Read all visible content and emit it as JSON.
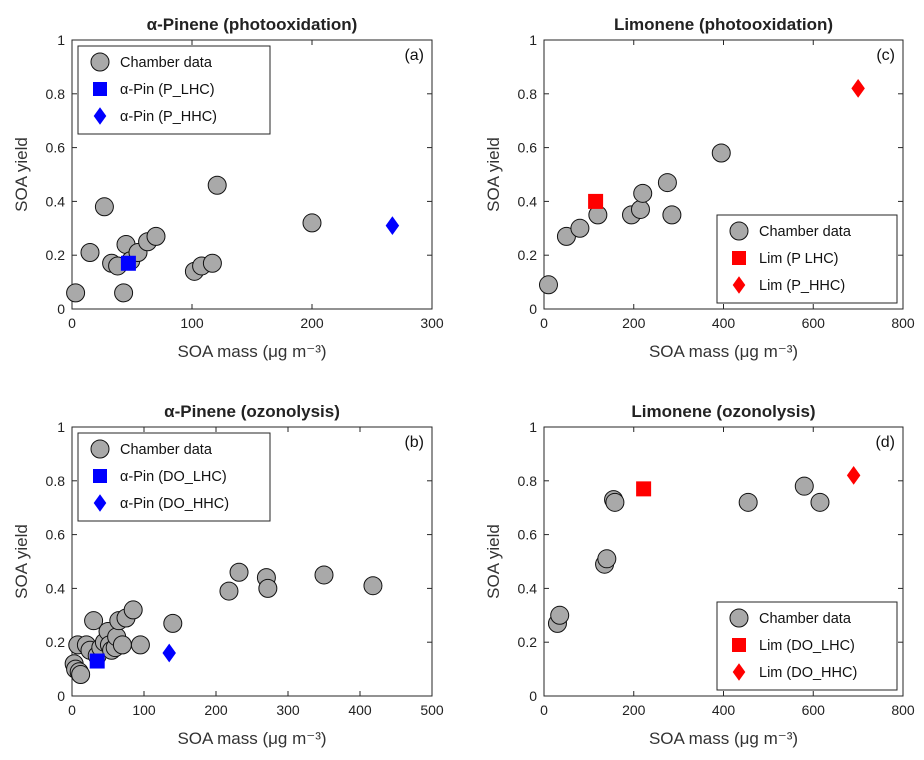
{
  "chart_data": [
    {
      "type": "scatter",
      "title": "α-Pinene (photooxidation)",
      "panel_label": "(a)",
      "xlabel": "SOA mass (μg m⁻³)",
      "ylabel": "SOA yield",
      "xlim": [
        0,
        300
      ],
      "ylim": [
        0,
        1
      ],
      "xticks": [
        0,
        100,
        200,
        300
      ],
      "yticks": [
        0,
        0.2,
        0.4,
        0.6,
        0.8,
        1
      ],
      "legend_position": "top-left",
      "series": [
        {
          "name": "Chamber data",
          "marker": "circle",
          "color": "#a9a9a9",
          "x": [
            3,
            15,
            27,
            33,
            38,
            43,
            45,
            49,
            55,
            63,
            70,
            102,
            108,
            117,
            121,
            200
          ],
          "y": [
            0.06,
            0.21,
            0.38,
            0.17,
            0.16,
            0.06,
            0.24,
            0.18,
            0.21,
            0.25,
            0.27,
            0.14,
            0.16,
            0.17,
            0.46,
            0.32
          ]
        },
        {
          "name": "α-Pin (P_LHC)",
          "marker": "square",
          "color": "#0000ff",
          "x": [
            47
          ],
          "y": [
            0.17
          ]
        },
        {
          "name": "α-Pin (P_HHC)",
          "marker": "diamond",
          "color": "#0000ff",
          "x": [
            267
          ],
          "y": [
            0.31
          ]
        }
      ]
    },
    {
      "type": "scatter",
      "title": "Limonene (photooxidation)",
      "panel_label": "(c)",
      "xlabel": "SOA mass (μg m⁻³)",
      "ylabel": "SOA yield",
      "xlim": [
        0,
        800
      ],
      "ylim": [
        0,
        1
      ],
      "xticks": [
        0,
        200,
        400,
        600,
        800
      ],
      "yticks": [
        0,
        0.2,
        0.4,
        0.6,
        0.8,
        1
      ],
      "legend_position": "bottom-right",
      "series": [
        {
          "name": "Chamber data",
          "marker": "circle",
          "color": "#a9a9a9",
          "x": [
            10,
            50,
            80,
            120,
            195,
            215,
            220,
            275,
            285,
            395
          ],
          "y": [
            0.09,
            0.27,
            0.3,
            0.35,
            0.35,
            0.37,
            0.43,
            0.47,
            0.35,
            0.58
          ]
        },
        {
          "name": "Lim (P LHC)",
          "marker": "square",
          "color": "#ff0000",
          "x": [
            115
          ],
          "y": [
            0.4
          ]
        },
        {
          "name": "Lim (P_HHC)",
          "marker": "diamond",
          "color": "#ff0000",
          "x": [
            700
          ],
          "y": [
            0.82
          ]
        }
      ]
    },
    {
      "type": "scatter",
      "title": "α-Pinene (ozonolysis)",
      "panel_label": "(b)",
      "xlabel": "SOA mass (μg m⁻³)",
      "ylabel": "SOA yield",
      "xlim": [
        0,
        500
      ],
      "ylim": [
        0,
        1
      ],
      "xticks": [
        0,
        100,
        200,
        300,
        400,
        500
      ],
      "yticks": [
        0,
        0.2,
        0.4,
        0.6,
        0.8,
        1
      ],
      "legend_position": "top-left",
      "series": [
        {
          "name": "Chamber data",
          "marker": "circle",
          "color": "#a9a9a9",
          "x": [
            3,
            5,
            8,
            10,
            12,
            20,
            25,
            30,
            35,
            40,
            45,
            50,
            52,
            55,
            60,
            62,
            65,
            70,
            75,
            85,
            95,
            140,
            218,
            232,
            270,
            272,
            350,
            418
          ],
          "y": [
            0.12,
            0.1,
            0.19,
            0.09,
            0.08,
            0.19,
            0.17,
            0.28,
            0.15,
            0.18,
            0.2,
            0.24,
            0.19,
            0.17,
            0.18,
            0.22,
            0.28,
            0.19,
            0.29,
            0.32,
            0.19,
            0.27,
            0.39,
            0.46,
            0.44,
            0.4,
            0.45,
            0.41
          ]
        },
        {
          "name": "α-Pin (DO_LHC)",
          "marker": "square",
          "color": "#0000ff",
          "x": [
            35
          ],
          "y": [
            0.13
          ]
        },
        {
          "name": "α-Pin (DO_HHC)",
          "marker": "diamond",
          "color": "#0000ff",
          "x": [
            135
          ],
          "y": [
            0.16
          ]
        }
      ]
    },
    {
      "type": "scatter",
      "title": "Limonene (ozonolysis)",
      "panel_label": "(d)",
      "xlabel": "SOA mass (μg m⁻³)",
      "ylabel": "SOA yield",
      "xlim": [
        0,
        800
      ],
      "ylim": [
        0,
        1
      ],
      "xticks": [
        0,
        200,
        400,
        600,
        800
      ],
      "yticks": [
        0,
        0.2,
        0.4,
        0.6,
        0.8,
        1
      ],
      "legend_position": "bottom-right",
      "series": [
        {
          "name": "Chamber data",
          "marker": "circle",
          "color": "#a9a9a9",
          "x": [
            30,
            35,
            135,
            140,
            155,
            158,
            455,
            580,
            615
          ],
          "y": [
            0.27,
            0.3,
            0.49,
            0.51,
            0.73,
            0.72,
            0.72,
            0.78,
            0.72
          ]
        },
        {
          "name": "Lim (DO_LHC)",
          "marker": "square",
          "color": "#ff0000",
          "x": [
            222
          ],
          "y": [
            0.77
          ]
        },
        {
          "name": "Lim (DO_HHC)",
          "marker": "diamond",
          "color": "#ff0000",
          "x": [
            690
          ],
          "y": [
            0.82
          ]
        }
      ]
    }
  ]
}
